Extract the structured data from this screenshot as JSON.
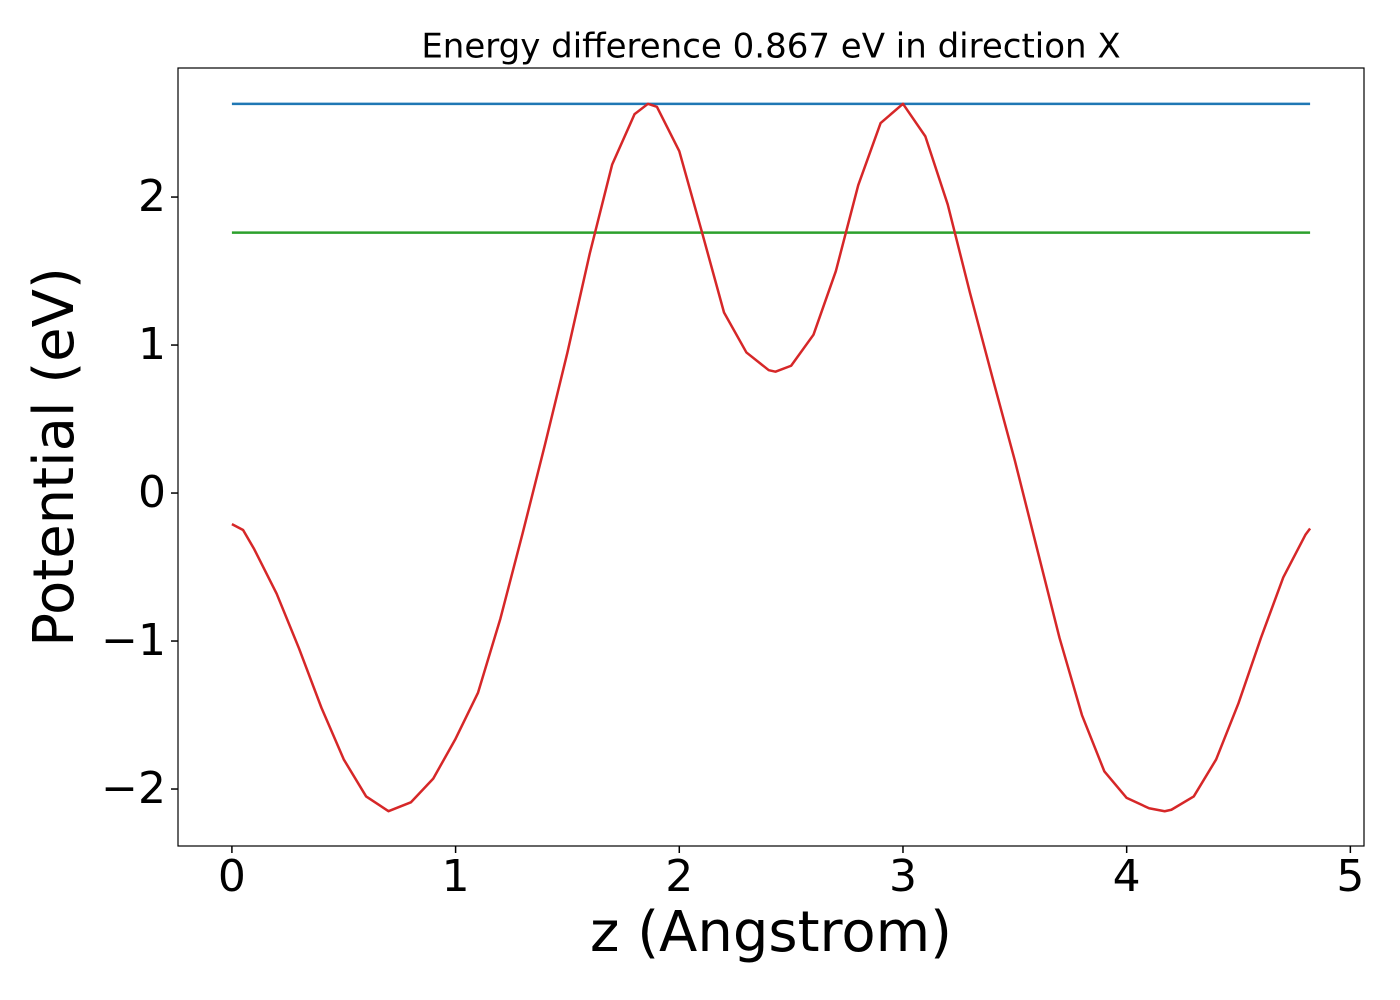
{
  "chart_data": {
    "type": "line",
    "title": "Energy difference 0.867 eV in direction X",
    "xlabel": "z (Angstrom)",
    "ylabel": "Potential (eV)",
    "xlim": [
      -0.241,
      5.061
    ],
    "ylim": [
      -2.385,
      2.872
    ],
    "xticks": [
      0,
      1,
      2,
      3,
      4,
      5
    ],
    "yticks": [
      {
        "value": -2,
        "label": "−2"
      },
      {
        "value": -1,
        "label": "−1"
      },
      0,
      1,
      2
    ],
    "series": [
      {
        "color": "#d62728",
        "x": [
          0,
          0.05,
          0.1,
          0.2,
          0.3,
          0.4,
          0.5,
          0.6,
          0.7,
          0.8,
          0.9,
          1.0,
          1.1,
          1.2,
          1.3,
          1.4,
          1.5,
          1.6,
          1.7,
          1.8,
          1.86,
          1.9,
          2.0,
          2.1,
          2.2,
          2.3,
          2.4,
          2.43,
          2.5,
          2.6,
          2.7,
          2.8,
          2.9,
          3.0,
          3.1,
          3.2,
          3.3,
          3.4,
          3.5,
          3.6,
          3.7,
          3.8,
          3.9,
          4.0,
          4.1,
          4.17,
          4.2,
          4.3,
          4.4,
          4.5,
          4.6,
          4.7,
          4.8,
          4.82
        ],
        "values": [
          -0.21,
          -0.25,
          -0.38,
          -0.68,
          -1.05,
          -1.45,
          -1.8,
          -2.05,
          -2.15,
          -2.09,
          -1.93,
          -1.66,
          -1.35,
          -0.85,
          -0.27,
          0.33,
          0.95,
          1.62,
          2.22,
          2.56,
          2.63,
          2.61,
          2.31,
          1.77,
          1.22,
          0.95,
          0.83,
          0.82,
          0.86,
          1.07,
          1.5,
          2.08,
          2.5,
          2.63,
          2.41,
          1.95,
          1.35,
          0.78,
          0.22,
          -0.38,
          -0.98,
          -1.5,
          -1.88,
          -2.06,
          -2.13,
          -2.15,
          -2.14,
          -2.05,
          -1.8,
          -1.42,
          -0.98,
          -0.57,
          -0.28,
          -0.24
        ]
      },
      {
        "color": "#1f77b4",
        "x": [
          0,
          4.82
        ],
        "values": [
          2.63,
          2.63
        ]
      },
      {
        "color": "#2ca02c",
        "x": [
          0,
          4.82
        ],
        "values": [
          1.76,
          1.76
        ]
      }
    ]
  }
}
